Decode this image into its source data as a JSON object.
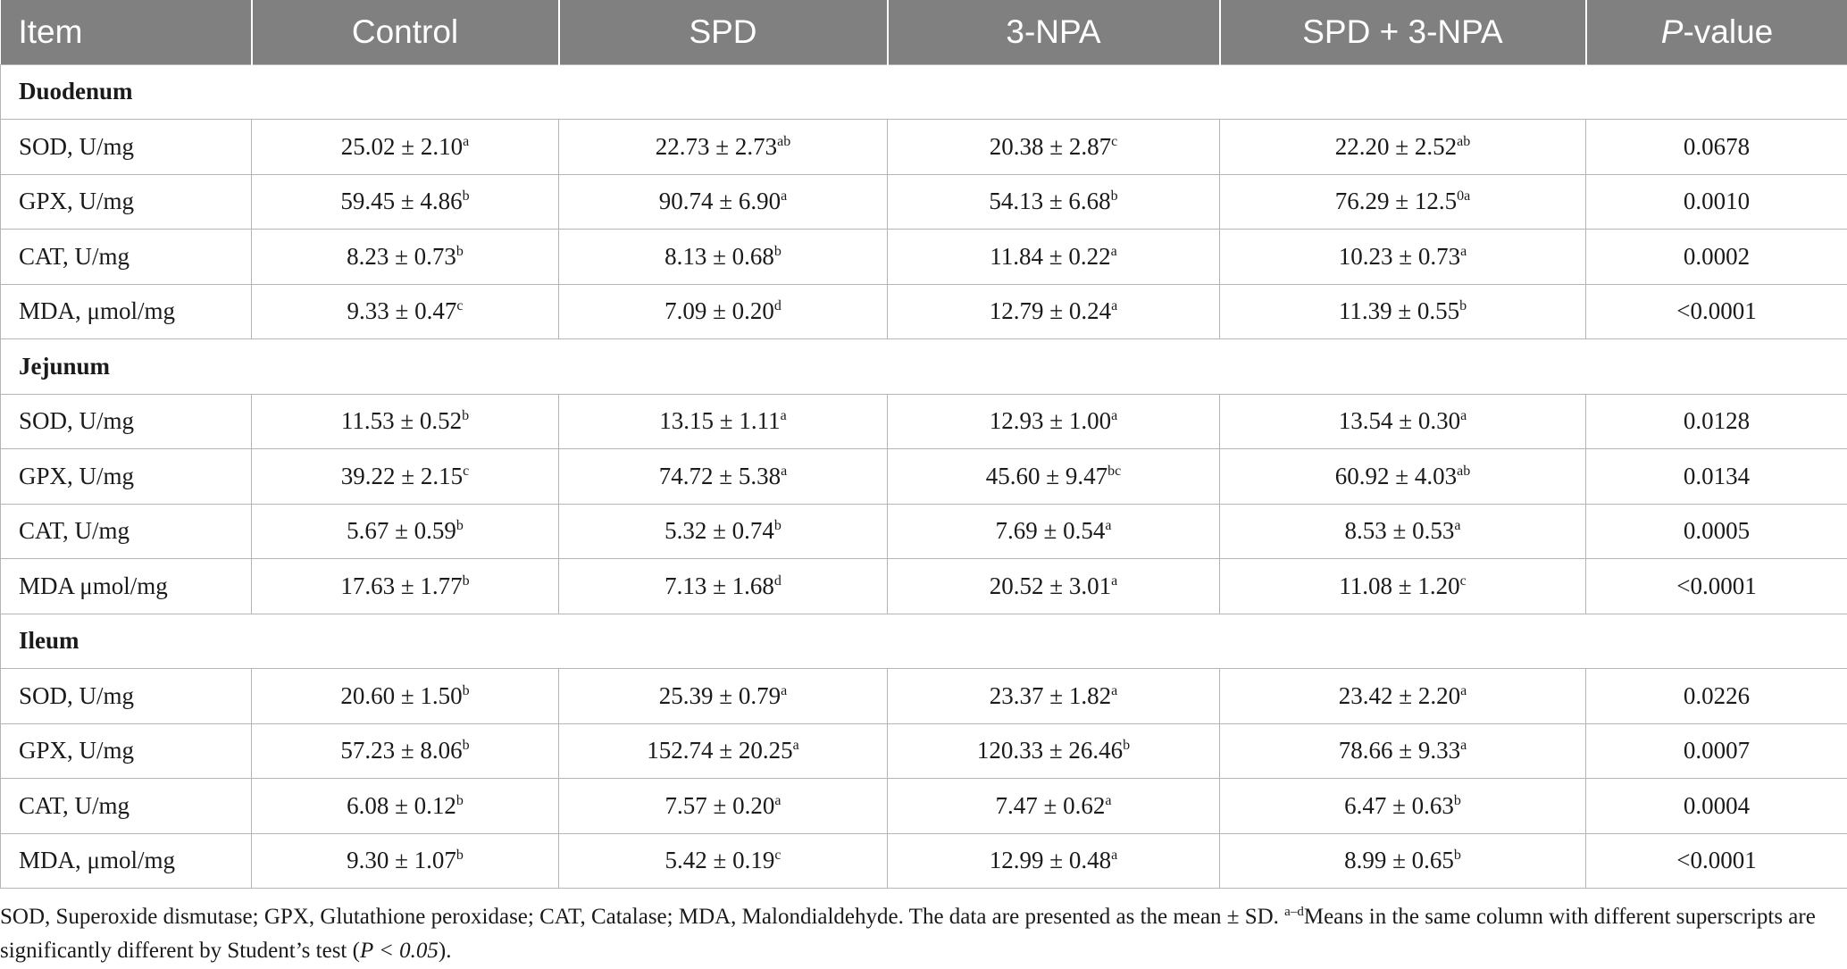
{
  "header": {
    "item": "Item",
    "control": "Control",
    "spd": "SPD",
    "npa": "3-NPA",
    "spd_npa": "SPD + 3-NPA",
    "p_italic": "P",
    "p_rest": "-value"
  },
  "sections": [
    {
      "title": "Duodenum",
      "rows": [
        {
          "item": "SOD, U/mg",
          "control": [
            "25.02 ± 2.10",
            "a"
          ],
          "spd": [
            "22.73 ± 2.73",
            "ab"
          ],
          "npa": [
            "20.38 ± 2.87",
            "c"
          ],
          "spd_npa": [
            "22.20 ± 2.52",
            "ab"
          ],
          "p": "0.0678"
        },
        {
          "item": "GPX, U/mg",
          "control": [
            "59.45 ± 4.86",
            "b"
          ],
          "spd": [
            "90.74 ± 6.90",
            "a"
          ],
          "npa": [
            "54.13 ± 6.68",
            "b"
          ],
          "spd_npa": [
            "76.29 ± 12.5",
            "0a"
          ],
          "p": "0.0010"
        },
        {
          "item": "CAT, U/mg",
          "control": [
            "8.23 ± 0.73",
            "b"
          ],
          "spd": [
            "8.13 ± 0.68",
            "b"
          ],
          "npa": [
            "11.84 ± 0.22",
            "a"
          ],
          "spd_npa": [
            "10.23 ± 0.73",
            "a"
          ],
          "p": "0.0002"
        },
        {
          "item": "MDA, μmol/mg",
          "control": [
            "9.33 ± 0.47",
            "c"
          ],
          "spd": [
            "7.09 ± 0.20",
            "d"
          ],
          "npa": [
            "12.79 ± 0.24",
            "a"
          ],
          "spd_npa": [
            "11.39 ± 0.55",
            "b"
          ],
          "p": "<0.0001"
        }
      ]
    },
    {
      "title": "Jejunum",
      "rows": [
        {
          "item": "SOD, U/mg",
          "control": [
            "11.53 ± 0.52",
            "b"
          ],
          "spd": [
            "13.15 ± 1.11",
            "a"
          ],
          "npa": [
            "12.93 ± 1.00",
            "a"
          ],
          "spd_npa": [
            "13.54 ± 0.30",
            "a"
          ],
          "p": "0.0128"
        },
        {
          "item": "GPX, U/mg",
          "control": [
            "39.22 ± 2.15",
            "c"
          ],
          "spd": [
            "74.72 ± 5.38",
            "a"
          ],
          "npa": [
            "45.60 ± 9.47",
            "bc"
          ],
          "spd_npa": [
            "60.92 ± 4.03",
            "ab"
          ],
          "p": "0.0134"
        },
        {
          "item": "CAT, U/mg",
          "control": [
            "5.67 ± 0.59",
            "b"
          ],
          "spd": [
            "5.32 ± 0.74",
            "b"
          ],
          "npa": [
            "7.69 ± 0.54",
            "a"
          ],
          "spd_npa": [
            "8.53 ± 0.53",
            "a"
          ],
          "p": "0.0005"
        },
        {
          "item": "MDA μmol/mg",
          "control": [
            "17.63 ± 1.77",
            "b"
          ],
          "spd": [
            "7.13 ± 1.68",
            "d"
          ],
          "npa": [
            "20.52 ± 3.01",
            "a"
          ],
          "spd_npa": [
            "11.08 ± 1.20",
            "c"
          ],
          "p": "<0.0001"
        }
      ]
    },
    {
      "title": "Ileum",
      "rows": [
        {
          "item": "SOD, U/mg",
          "control": [
            "20.60 ± 1.50",
            "b"
          ],
          "spd": [
            "25.39 ± 0.79",
            "a"
          ],
          "npa": [
            "23.37 ± 1.82",
            "a"
          ],
          "spd_npa": [
            "23.42 ± 2.20",
            "a"
          ],
          "p": "0.0226"
        },
        {
          "item": "GPX, U/mg",
          "control": [
            "57.23 ± 8.06",
            "b"
          ],
          "spd": [
            "152.74 ± 20.25",
            "a"
          ],
          "npa": [
            "120.33 ± 26.46",
            "b"
          ],
          "spd_npa": [
            "78.66 ± 9.33",
            "a"
          ],
          "p": "0.0007"
        },
        {
          "item": "CAT, U/mg",
          "control": [
            "6.08 ± 0.12",
            "b"
          ],
          "spd": [
            "7.57 ± 0.20",
            "a"
          ],
          "npa": [
            "7.47 ± 0.62",
            "a"
          ],
          "spd_npa": [
            "6.47 ± 0.63",
            "b"
          ],
          "p": "0.0004"
        },
        {
          "item": "MDA, μmol/mg",
          "control": [
            "9.30 ± 1.07",
            "b"
          ],
          "spd": [
            "5.42 ± 0.19",
            "c"
          ],
          "npa": [
            "12.99 ± 0.48",
            "a"
          ],
          "spd_npa": [
            "8.99 ± 0.65",
            "b"
          ],
          "p": "<0.0001"
        }
      ]
    }
  ],
  "footnote": {
    "part1": "SOD, Superoxide dismutase; GPX, Glutathione peroxidase; CAT, Catalase; MDA, Malondialdehyde. The data are presented as the mean ± SD. ",
    "sup": "a–d",
    "part2": "Means in the same column with different superscripts are significantly different by Student’s test (",
    "italic": "P < 0.05",
    "part3": ")."
  }
}
